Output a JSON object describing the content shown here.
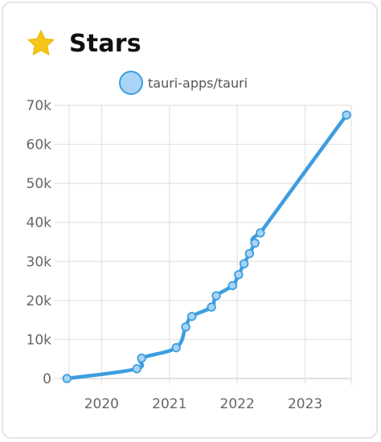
{
  "header": {
    "title": "Stars",
    "icon": "star-icon",
    "icon_color": "#f5c518"
  },
  "colors": {
    "series_line": "#3d9de0",
    "series_fill": "#a9d4f5",
    "grid": "#e3e3e3",
    "axis": "#cfcfcf"
  },
  "chart_data": {
    "type": "line",
    "title": "",
    "xlabel": "",
    "ylabel": "",
    "ylim": [
      0,
      70000
    ],
    "xlim": [
      2019.38,
      2023.68
    ],
    "grid": true,
    "legend_position": "top-center",
    "y_ticks": [
      {
        "value": 0,
        "label": "0"
      },
      {
        "value": 10000,
        "label": "10k"
      },
      {
        "value": 20000,
        "label": "20k"
      },
      {
        "value": 30000,
        "label": "30k"
      },
      {
        "value": 40000,
        "label": "40k"
      },
      {
        "value": 50000,
        "label": "50k"
      },
      {
        "value": 60000,
        "label": "60k"
      },
      {
        "value": 70000,
        "label": "70k"
      }
    ],
    "x_ticks": [
      {
        "value": 2020,
        "label": "2020"
      },
      {
        "value": 2021,
        "label": "2021"
      },
      {
        "value": 2022,
        "label": "2022"
      },
      {
        "value": 2023,
        "label": "2023"
      }
    ],
    "series": [
      {
        "name": "tauri-apps/tauri",
        "points": [
          {
            "x": "2019-06",
            "t": 2019.49,
            "y": 0
          },
          {
            "x": "2020-07",
            "t": 2020.52,
            "y": 2500
          },
          {
            "x": "2020-08",
            "t": 2020.59,
            "y": 5200
          },
          {
            "x": "2021-02",
            "t": 2021.1,
            "y": 7900
          },
          {
            "x": "2021-03",
            "t": 2021.24,
            "y": 13200
          },
          {
            "x": "2021-04",
            "t": 2021.33,
            "y": 15900
          },
          {
            "x": "2021-08",
            "t": 2021.62,
            "y": 18300
          },
          {
            "x": "2021-09",
            "t": 2021.69,
            "y": 21200
          },
          {
            "x": "2021-12",
            "t": 2021.93,
            "y": 23800
          },
          {
            "x": "2022-01",
            "t": 2022.02,
            "y": 26600
          },
          {
            "x": "2022-02",
            "t": 2022.1,
            "y": 29400
          },
          {
            "x": "2022-03",
            "t": 2022.18,
            "y": 32000
          },
          {
            "x": "2022-04",
            "t": 2022.26,
            "y": 34700
          },
          {
            "x": "2022-05",
            "t": 2022.34,
            "y": 37300
          },
          {
            "x": "2023-08",
            "t": 2023.61,
            "y": 67500
          }
        ]
      }
    ]
  }
}
